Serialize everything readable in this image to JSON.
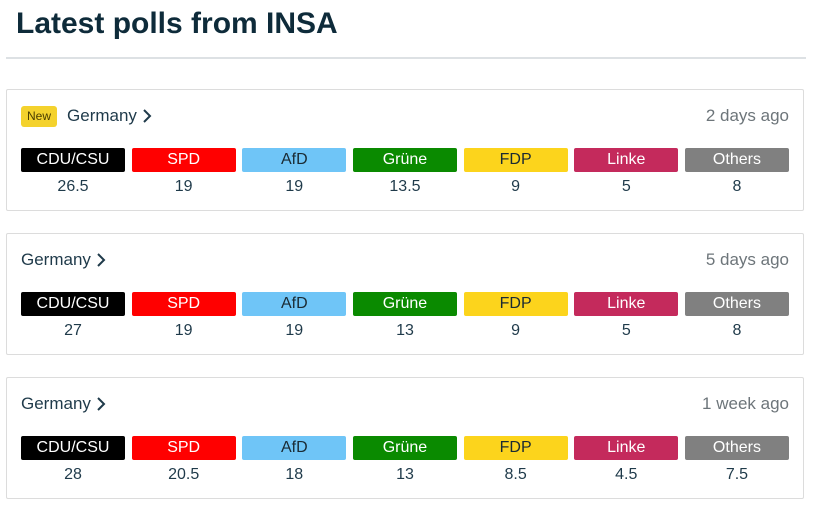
{
  "heading": "Latest polls from INSA",
  "parties": [
    {
      "name": "CDU/CSU",
      "color": "#000000",
      "text": "#ffffff"
    },
    {
      "name": "SPD",
      "color": "#ff0000",
      "text": "#ffffff"
    },
    {
      "name": "AfD",
      "color": "#6fc5f7",
      "text": "#1a2a33"
    },
    {
      "name": "Grüne",
      "color": "#0a8a00",
      "text": "#ffffff"
    },
    {
      "name": "FDP",
      "color": "#fcd41c",
      "text": "#1a2a33"
    },
    {
      "name": "Linke",
      "color": "#c42a5c",
      "text": "#ffffff"
    },
    {
      "name": "Others",
      "color": "#808080",
      "text": "#ffffff"
    }
  ],
  "polls": [
    {
      "badge": "New",
      "region": "Germany",
      "time": "2 days ago",
      "values": [
        "26.5",
        "19",
        "19",
        "13.5",
        "9",
        "5",
        "8"
      ]
    },
    {
      "badge": "",
      "region": "Germany",
      "time": "5 days ago",
      "values": [
        "27",
        "19",
        "19",
        "13",
        "9",
        "5",
        "8"
      ]
    },
    {
      "badge": "",
      "region": "Germany",
      "time": "1 week ago",
      "values": [
        "28",
        "20.5",
        "18",
        "13",
        "8.5",
        "4.5",
        "7.5"
      ]
    }
  ]
}
